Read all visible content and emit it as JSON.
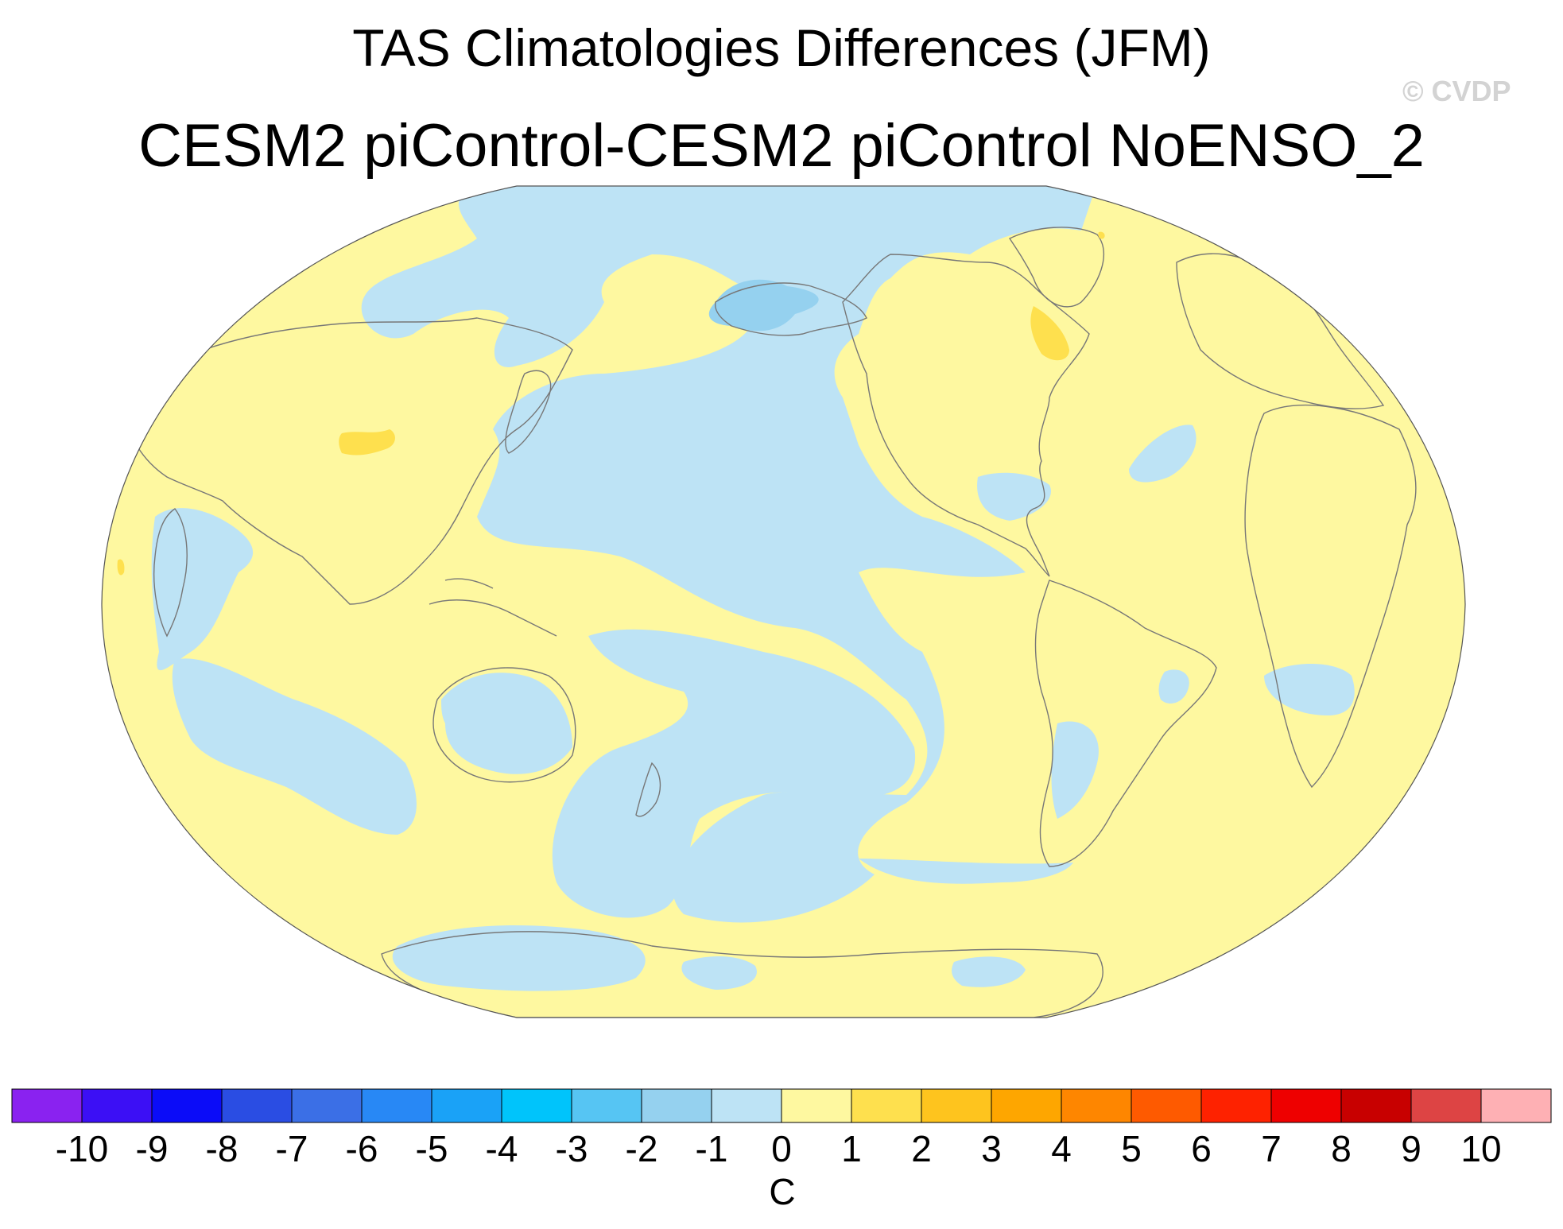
{
  "title_line1": "TAS Climatologies Differences (JFM)",
  "title_line2": "CESM2 piControl-CESM2 piControl NoENSO_2",
  "watermark": "© CVDP",
  "map": {
    "projection": "Robinson (Pacific-centered)",
    "variable": "TAS",
    "ocean_colors": {
      "pos_0_1": "#fef8a0",
      "neg_1_0": "#bde3f5",
      "neg_2_1": "#95d1ef",
      "pos_1_2": "#fee04e"
    }
  },
  "colorbar": {
    "units": "C",
    "tick_labels": [
      "-10",
      "-9",
      "-8",
      "-7",
      "-6",
      "-5",
      "-4",
      "-3",
      "-2",
      "-1",
      "0",
      "1",
      "2",
      "3",
      "4",
      "5",
      "6",
      "7",
      "8",
      "9",
      "10"
    ],
    "colors": [
      "#8a22f0",
      "#3c0ff5",
      "#0b0cf8",
      "#2a4de3",
      "#3b6fe6",
      "#2888f5",
      "#1aa2f7",
      "#00c4fb",
      "#56c5f3",
      "#95d1ef",
      "#bde3f5",
      "#fef8a0",
      "#fee04e",
      "#fec41e",
      "#fea600",
      "#fe8600",
      "#fe5a00",
      "#fe2200",
      "#ee0000",
      "#c80000",
      "#dd4444",
      "#feb0b4"
    ]
  }
}
